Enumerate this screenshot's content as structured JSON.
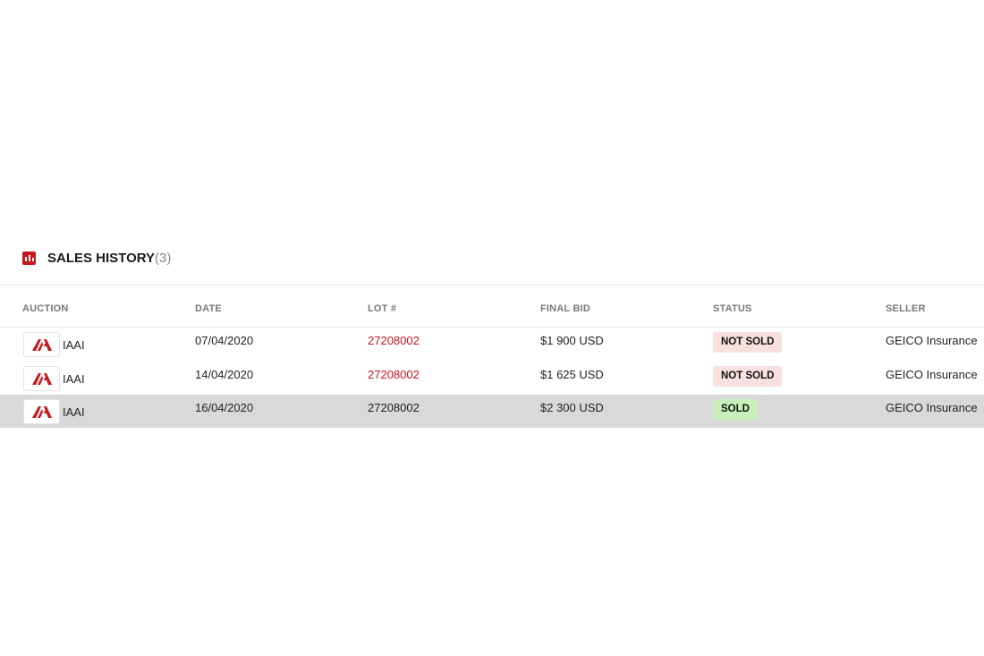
{
  "section": {
    "title": "SALES HISTORY",
    "count": "(3)",
    "icon": "bar-chart-icon"
  },
  "columns": [
    "AUCTION",
    "DATE",
    "LOT #",
    "FINAL BID",
    "STATUS",
    "SELLER"
  ],
  "rows": [
    {
      "auction": "IAAI",
      "date": "07/04/2020",
      "lot": "27208002",
      "bid": "$1 900 USD",
      "status": "NOT SOLD",
      "seller": "GEICO Insurance"
    },
    {
      "auction": "IAAI",
      "date": "14/04/2020",
      "lot": "27208002",
      "bid": "$1 625 USD",
      "status": "NOT SOLD",
      "seller": "GEICO Insurance"
    },
    {
      "auction": "IAAI",
      "date": "16/04/2020",
      "lot": "27208002",
      "bid": "$2 300 USD",
      "status": "SOLD",
      "seller": "GEICO Insurance"
    }
  ],
  "colors": {
    "accent": "#c8161d",
    "not_sold_bg": "#f8e0e0",
    "sold_bg": "#c8efb8",
    "highlight_row": "#d9d9d9"
  }
}
